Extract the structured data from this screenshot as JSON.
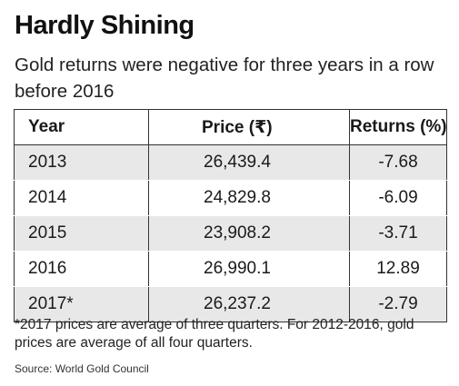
{
  "title": "Hardly Shining",
  "subtitle": "Gold returns were negative for three years in a row before 2016",
  "chart_data": {
    "type": "table",
    "title": "Hardly Shining",
    "subtitle": "Gold returns were negative for three years in a row before 2016",
    "columns": [
      "Year",
      "Price (₹)",
      "Returns (%)"
    ],
    "rows": [
      {
        "year": "2013",
        "price": "26,439.4",
        "returns": "-7.68"
      },
      {
        "year": "2014",
        "price": "24,829.8",
        "returns": "-6.09"
      },
      {
        "year": "2015",
        "price": "23,908.2",
        "returns": "-3.71"
      },
      {
        "year": "2016",
        "price": "26,990.1",
        "returns": "12.89"
      },
      {
        "year": "2017*",
        "price": "26,237.2",
        "returns": "-2.79"
      }
    ],
    "footnote": "*2017 prices are average of three quarters. For 2012-2016, gold prices are average of all four quarters.",
    "source": "Source: World Gold Council"
  },
  "colors": {
    "shade": "#e8e8e8",
    "border": "#333333",
    "text": "#1a1a1a"
  }
}
